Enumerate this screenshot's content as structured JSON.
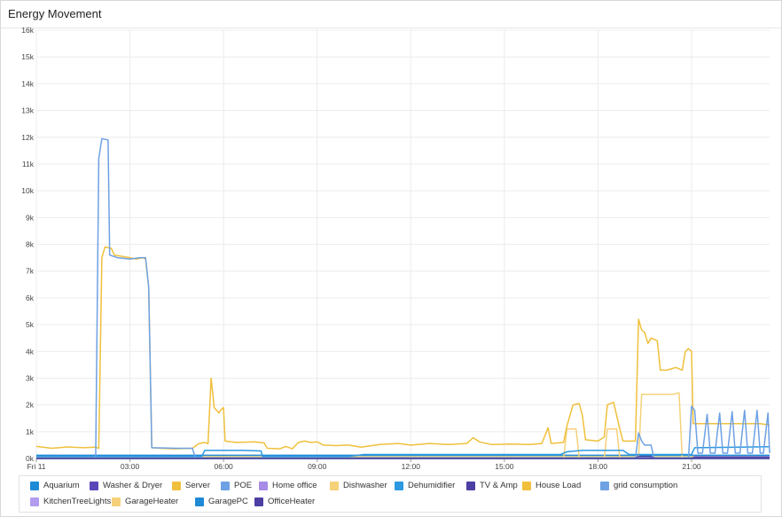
{
  "panel": {
    "title": "Energy Movement"
  },
  "chart_data": {
    "type": "line",
    "title": "Energy Movement",
    "xlabel": "",
    "ylabel": "",
    "ylim": [
      0,
      16000
    ],
    "xlim": [
      0,
      23.5
    ],
    "y_ticks": [
      {
        "value": 0,
        "label": "0k"
      },
      {
        "value": 1000,
        "label": "1k"
      },
      {
        "value": 2000,
        "label": "2k"
      },
      {
        "value": 3000,
        "label": "3k"
      },
      {
        "value": 4000,
        "label": "4k"
      },
      {
        "value": 5000,
        "label": "5k"
      },
      {
        "value": 6000,
        "label": "6k"
      },
      {
        "value": 7000,
        "label": "7k"
      },
      {
        "value": 8000,
        "label": "8k"
      },
      {
        "value": 9000,
        "label": "9k"
      },
      {
        "value": 10000,
        "label": "10k"
      },
      {
        "value": 11000,
        "label": "11k"
      },
      {
        "value": 12000,
        "label": "12k"
      },
      {
        "value": 13000,
        "label": "13k"
      },
      {
        "value": 14000,
        "label": "14k"
      },
      {
        "value": 15000,
        "label": "15k"
      },
      {
        "value": 16000,
        "label": "16k"
      }
    ],
    "x_ticks": [
      {
        "value": 0,
        "label": "Fri 11"
      },
      {
        "value": 3,
        "label": "03:00"
      },
      {
        "value": 6,
        "label": "06:00"
      },
      {
        "value": 9,
        "label": "09:00"
      },
      {
        "value": 12,
        "label": "12:00"
      },
      {
        "value": 15,
        "label": "15:00"
      },
      {
        "value": 18,
        "label": "18:00"
      },
      {
        "value": 21,
        "label": "21:00"
      }
    ],
    "grid": true,
    "legend_position": "bottom",
    "series": [
      {
        "name": "Aquarium",
        "color": "#1f8ad6",
        "points": [
          [
            0,
            120
          ],
          [
            23.5,
            120
          ]
        ]
      },
      {
        "name": "Washer & Dryer",
        "color": "#5b47b8",
        "points": [
          [
            0,
            0
          ],
          [
            17.2,
            0
          ],
          [
            17.25,
            50
          ],
          [
            17.5,
            50
          ],
          [
            17.55,
            0
          ],
          [
            23.5,
            0
          ]
        ]
      },
      {
        "name": "Server",
        "color": "#f0c03c",
        "points": [
          [
            0,
            60
          ],
          [
            23.5,
            60
          ]
        ]
      },
      {
        "name": "POE",
        "color": "#6ea1e3",
        "points": [
          [
            0,
            30
          ],
          [
            23.5,
            30
          ]
        ]
      },
      {
        "name": "Home office",
        "color": "#a78be6",
        "points": [
          [
            0,
            0
          ],
          [
            23.5,
            0
          ]
        ]
      },
      {
        "name": "Dishwasher",
        "color": "#f5d17a",
        "points": [
          [
            0,
            0
          ],
          [
            16.9,
            0
          ],
          [
            17.0,
            1100
          ],
          [
            17.3,
            1100
          ],
          [
            17.4,
            0
          ],
          [
            18.2,
            0
          ],
          [
            18.3,
            1100
          ],
          [
            18.6,
            1100
          ],
          [
            18.7,
            0
          ],
          [
            19.3,
            0
          ],
          [
            19.4,
            2400
          ],
          [
            20.4,
            2400
          ],
          [
            20.6,
            2450
          ],
          [
            20.7,
            0
          ],
          [
            23.5,
            0
          ]
        ]
      },
      {
        "name": "Dehumidifier",
        "color": "#2c99e0",
        "points": [
          [
            0,
            80
          ],
          [
            5.3,
            80
          ],
          [
            5.4,
            300
          ],
          [
            6.6,
            300
          ],
          [
            7.2,
            280
          ],
          [
            7.25,
            80
          ],
          [
            10,
            80
          ],
          [
            10.5,
            150
          ],
          [
            16.8,
            150
          ],
          [
            17.0,
            250
          ],
          [
            17.5,
            300
          ],
          [
            18.8,
            300
          ],
          [
            19.0,
            150
          ],
          [
            21.0,
            150
          ],
          [
            21.1,
            400
          ],
          [
            22.5,
            420
          ],
          [
            23.5,
            440
          ]
        ]
      },
      {
        "name": "TV & Amp",
        "color": "#4b3fa3",
        "points": [
          [
            0,
            0
          ],
          [
            19.2,
            0
          ],
          [
            19.3,
            80
          ],
          [
            19.7,
            80
          ],
          [
            19.8,
            0
          ],
          [
            21.0,
            0
          ],
          [
            21.1,
            60
          ],
          [
            23.5,
            60
          ]
        ]
      },
      {
        "name": "House Load",
        "color": "#f0c03c",
        "points": [
          [
            0,
            450
          ],
          [
            0.5,
            380
          ],
          [
            1.0,
            430
          ],
          [
            1.5,
            400
          ],
          [
            1.9,
            420
          ],
          [
            2.0,
            380
          ],
          [
            2.1,
            7500
          ],
          [
            2.2,
            7900
          ],
          [
            2.4,
            7850
          ],
          [
            2.5,
            7600
          ],
          [
            3.0,
            7500
          ],
          [
            3.2,
            7450
          ],
          [
            3.4,
            7500
          ],
          [
            3.5,
            7450
          ],
          [
            3.6,
            6400
          ],
          [
            3.7,
            400
          ],
          [
            4.0,
            380
          ],
          [
            4.4,
            360
          ],
          [
            5.0,
            380
          ],
          [
            5.2,
            550
          ],
          [
            5.4,
            600
          ],
          [
            5.5,
            550
          ],
          [
            5.6,
            3000
          ],
          [
            5.7,
            1900
          ],
          [
            5.85,
            1700
          ],
          [
            5.9,
            1800
          ],
          [
            6.0,
            1900
          ],
          [
            6.05,
            650
          ],
          [
            6.4,
            600
          ],
          [
            7.0,
            620
          ],
          [
            7.3,
            580
          ],
          [
            7.4,
            380
          ],
          [
            7.8,
            360
          ],
          [
            8.0,
            450
          ],
          [
            8.2,
            360
          ],
          [
            8.4,
            600
          ],
          [
            8.6,
            650
          ],
          [
            8.8,
            600
          ],
          [
            9.0,
            620
          ],
          [
            9.2,
            500
          ],
          [
            9.6,
            480
          ],
          [
            10,
            500
          ],
          [
            10.4,
            420
          ],
          [
            11,
            520
          ],
          [
            11.6,
            560
          ],
          [
            12,
            500
          ],
          [
            12.6,
            560
          ],
          [
            13.2,
            520
          ],
          [
            13.8,
            560
          ],
          [
            14.0,
            780
          ],
          [
            14.2,
            620
          ],
          [
            14.6,
            520
          ],
          [
            15.2,
            540
          ],
          [
            15.8,
            520
          ],
          [
            16.2,
            560
          ],
          [
            16.4,
            1150
          ],
          [
            16.5,
            560
          ],
          [
            16.9,
            600
          ],
          [
            17.0,
            1200
          ],
          [
            17.2,
            2000
          ],
          [
            17.4,
            2050
          ],
          [
            17.5,
            1600
          ],
          [
            17.6,
            700
          ],
          [
            18.0,
            650
          ],
          [
            18.2,
            800
          ],
          [
            18.3,
            2000
          ],
          [
            18.5,
            2100
          ],
          [
            18.7,
            1100
          ],
          [
            18.8,
            650
          ],
          [
            19.2,
            650
          ],
          [
            19.3,
            5200
          ],
          [
            19.4,
            4800
          ],
          [
            19.5,
            4700
          ],
          [
            19.6,
            4300
          ],
          [
            19.7,
            4500
          ],
          [
            19.9,
            4400
          ],
          [
            20.0,
            3300
          ],
          [
            20.2,
            3300
          ],
          [
            20.5,
            3400
          ],
          [
            20.7,
            3300
          ],
          [
            20.8,
            4000
          ],
          [
            20.9,
            4100
          ],
          [
            21.0,
            4000
          ],
          [
            21.05,
            1300
          ],
          [
            21.4,
            1300
          ],
          [
            22,
            1300
          ],
          [
            22.6,
            1300
          ],
          [
            23.2,
            1300
          ],
          [
            23.5,
            1250
          ]
        ]
      },
      {
        "name": "grid consumption",
        "color": "#6ea1e3",
        "points": [
          [
            0,
            0
          ],
          [
            1.9,
            0
          ],
          [
            2.0,
            11200
          ],
          [
            2.1,
            11950
          ],
          [
            2.3,
            11900
          ],
          [
            2.35,
            7600
          ],
          [
            2.6,
            7500
          ],
          [
            3.0,
            7450
          ],
          [
            3.3,
            7500
          ],
          [
            3.5,
            7500
          ],
          [
            3.6,
            6400
          ],
          [
            3.7,
            400
          ],
          [
            4.5,
            380
          ],
          [
            5.0,
            380
          ],
          [
            5.1,
            0
          ],
          [
            19.2,
            0
          ],
          [
            19.3,
            950
          ],
          [
            19.4,
            650
          ],
          [
            19.5,
            500
          ],
          [
            19.7,
            500
          ],
          [
            19.8,
            0
          ],
          [
            20.9,
            0
          ],
          [
            21.0,
            1950
          ],
          [
            21.1,
            1800
          ],
          [
            21.2,
            200
          ],
          [
            21.35,
            200
          ],
          [
            21.5,
            1650
          ],
          [
            21.6,
            200
          ],
          [
            21.75,
            200
          ],
          [
            21.9,
            1700
          ],
          [
            22.0,
            200
          ],
          [
            22.15,
            200
          ],
          [
            22.3,
            1750
          ],
          [
            22.4,
            200
          ],
          [
            22.55,
            200
          ],
          [
            22.7,
            1800
          ],
          [
            22.8,
            200
          ],
          [
            22.95,
            200
          ],
          [
            23.1,
            1800
          ],
          [
            23.2,
            200
          ],
          [
            23.3,
            200
          ],
          [
            23.45,
            1700
          ],
          [
            23.5,
            200
          ]
        ]
      },
      {
        "name": "KitchenTreeLights",
        "color": "#b19cf0",
        "points": [
          [
            0,
            0
          ],
          [
            23.5,
            0
          ]
        ]
      },
      {
        "name": "GarageHeater",
        "color": "#f5d17a",
        "points": [
          [
            0,
            0
          ],
          [
            23.5,
            0
          ]
        ]
      },
      {
        "name": "GaragePC",
        "color": "#1f8ad6",
        "points": [
          [
            0,
            0
          ],
          [
            23.5,
            0
          ]
        ]
      },
      {
        "name": "OfficeHeater",
        "color": "#4b3fa3",
        "points": [
          [
            0,
            0
          ],
          [
            23.5,
            0
          ]
        ]
      }
    ]
  },
  "legend": {
    "items": [
      {
        "label": "Aquarium",
        "color": "#1f8ad6"
      },
      {
        "label": "Washer & Dryer",
        "color": "#5b47b8"
      },
      {
        "label": "Server",
        "color": "#f0c03c"
      },
      {
        "label": "POE",
        "color": "#6ea1e3"
      },
      {
        "label": "Home office",
        "color": "#a78be6"
      },
      {
        "label": "Dishwasher",
        "color": "#f5d17a"
      },
      {
        "label": "Dehumidifier",
        "color": "#2c99e0"
      },
      {
        "label": "TV & Amp",
        "color": "#4b3fa3"
      },
      {
        "label": "House Load",
        "color": "#f0c03c"
      },
      {
        "label": "grid consumption",
        "color": "#6ea1e3"
      },
      {
        "label": "KitchenTreeLights",
        "color": "#b19cf0"
      },
      {
        "label": "GarageHeater",
        "color": "#f5d17a"
      },
      {
        "label": "GaragePC",
        "color": "#1f8ad6"
      },
      {
        "label": "OfficeHeater",
        "color": "#4b3fa3"
      }
    ]
  }
}
